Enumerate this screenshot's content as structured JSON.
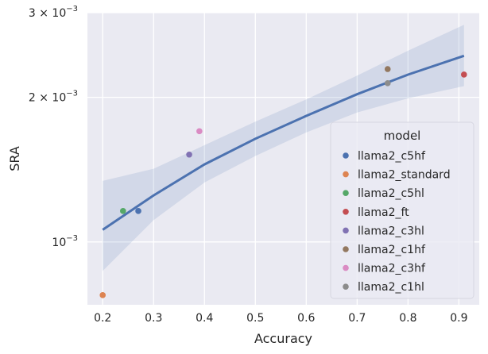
{
  "chart_data": {
    "type": "scatter",
    "title": "",
    "xlabel": "Accuracy",
    "ylabel": "SRA",
    "x_ticks": [
      0.2,
      0.3,
      0.4,
      0.5,
      0.6,
      0.7,
      0.8,
      0.9
    ],
    "x_tick_labels": [
      "0.2",
      "0.3",
      "0.4",
      "0.5",
      "0.6",
      "0.7",
      "0.8",
      "0.9"
    ],
    "xlim": [
      0.17,
      0.94
    ],
    "y_scale": "log",
    "ylim": [
      0.00074,
      0.003
    ],
    "y_ticks": [
      0.001,
      0.002,
      0.003
    ],
    "y_tick_labels": [
      {
        "base": "10",
        "exp": "−3",
        "mult": ""
      },
      {
        "base": "10",
        "exp": "−3",
        "mult": "2 × "
      },
      {
        "base": "10",
        "exp": "−3",
        "mult": "3 × "
      }
    ],
    "grid": true,
    "legend_title": "model",
    "legend_position": "lower right",
    "series": [
      {
        "name": "llama2_c5hf",
        "color": "#4c72b0",
        "x": 0.27,
        "y": 0.00116
      },
      {
        "name": "llama2_standard",
        "color": "#dd8452",
        "x": 0.2,
        "y": 0.000775
      },
      {
        "name": "llama2_c5hl",
        "color": "#55a868",
        "x": 0.24,
        "y": 0.00116
      },
      {
        "name": "llama2_ft",
        "color": "#c44e52",
        "x": 0.91,
        "y": 0.00223
      },
      {
        "name": "llama2_c3hl",
        "color": "#8172b3",
        "x": 0.37,
        "y": 0.00152
      },
      {
        "name": "llama2_c1hf",
        "color": "#937860",
        "x": 0.76,
        "y": 0.00229
      },
      {
        "name": "llama2_c3hf",
        "color": "#da8bc3",
        "x": 0.39,
        "y": 0.0017
      },
      {
        "name": "llama2_c1hl",
        "color": "#8c8c8c",
        "x": 0.76,
        "y": 0.00214
      }
    ],
    "regression": {
      "color": "#4c72b0",
      "band_color": "#4c72b0",
      "x": [
        0.2,
        0.3,
        0.4,
        0.5,
        0.6,
        0.7,
        0.8,
        0.91
      ],
      "y": [
        0.00106,
        0.00125,
        0.00145,
        0.00164,
        0.00183,
        0.00203,
        0.00223,
        0.00244
      ],
      "ci_low": [
        0.00087,
        0.00111,
        0.00133,
        0.00151,
        0.00169,
        0.00186,
        0.00199,
        0.00211
      ],
      "ci_high": [
        0.00134,
        0.00142,
        0.00159,
        0.00178,
        0.00198,
        0.00222,
        0.0025,
        0.00283
      ]
    },
    "background_color": "#eaeaf2",
    "grid_color": "#ffffff"
  }
}
